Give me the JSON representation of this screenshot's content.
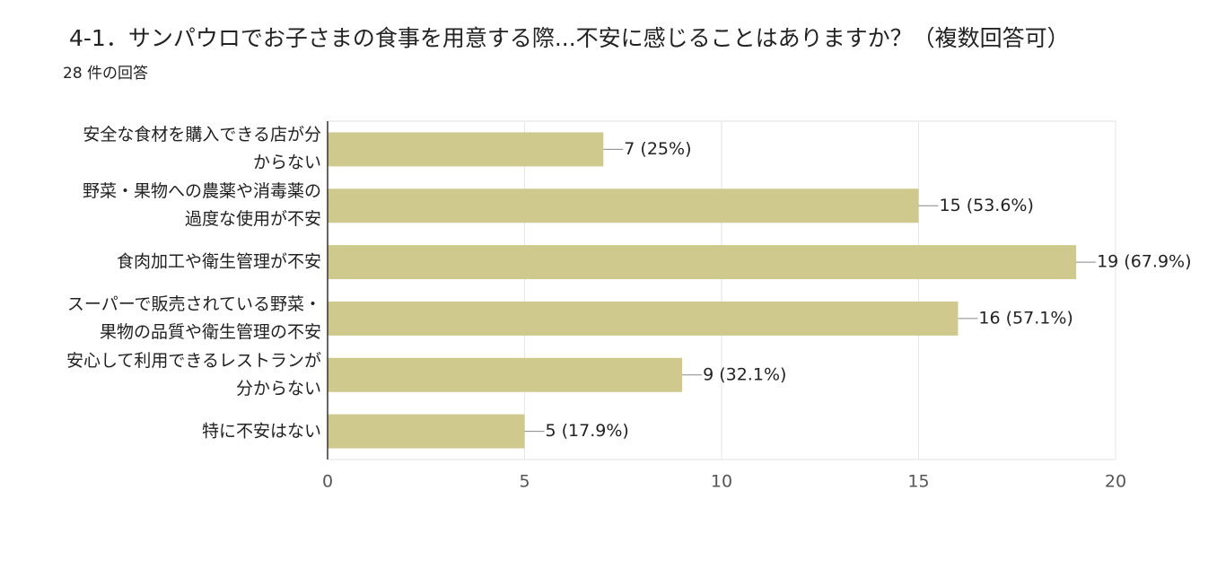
{
  "chart_data": {
    "type": "bar",
    "orientation": "horizontal",
    "title": "4-1．サンパウロでお子さまの食事を用意する際...不安に感じることはありますか？（複数回答可）",
    "subtitle": "28 件の回答",
    "categories": [
      "安全な食材を購入できる店が分\nからない",
      "野菜・果物への農薬や消毒薬の\n過度な使用が不安",
      "食肉加工や衛生管理が不安",
      "スーパーで販売されている野菜・\n果物の品質や衛生管理の不安",
      "安心して利用できるレストランが\n分からない",
      "特に不安はない"
    ],
    "values": [
      7,
      15,
      19,
      16,
      9,
      5
    ],
    "value_labels": [
      "7 (25%)",
      "15 (53.6%)",
      "19 (67.9%)",
      "16 (57.1%)",
      "9 (32.1%)",
      "5 (17.9%)"
    ],
    "color": "#d0c98e",
    "xlim": [
      0,
      20
    ],
    "xticks": [
      0,
      5,
      10,
      15,
      20
    ],
    "grid": true
  }
}
